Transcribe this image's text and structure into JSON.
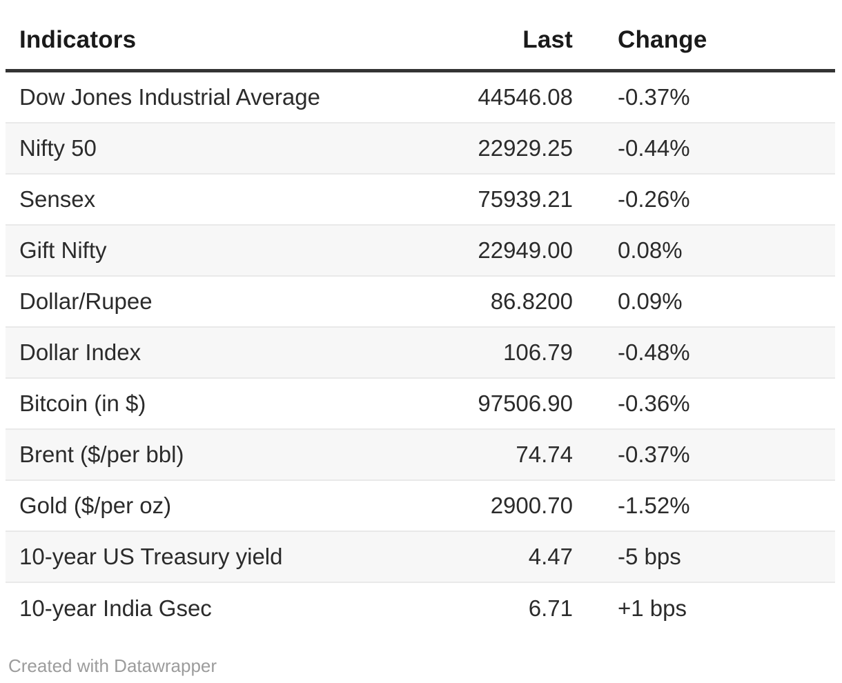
{
  "chart_data": {
    "type": "table",
    "title": "",
    "columns": [
      "Indicators",
      "Last",
      "Change"
    ],
    "rows": [
      {
        "indicator": "Dow Jones Industrial Average",
        "last": "44546.08",
        "change": "-0.37%"
      },
      {
        "indicator": "Nifty 50",
        "last": "22929.25",
        "change": "-0.44%"
      },
      {
        "indicator": "Sensex",
        "last": "75939.21",
        "change": "-0.26%"
      },
      {
        "indicator": "Gift Nifty",
        "last": "22949.00",
        "change": "0.08%"
      },
      {
        "indicator": "Dollar/Rupee",
        "last": "86.8200",
        "change": "0.09%"
      },
      {
        "indicator": "Dollar Index",
        "last": "106.79",
        "change": "-0.48%"
      },
      {
        "indicator": "Bitcoin (in $)",
        "last": "97506.90",
        "change": "-0.36%"
      },
      {
        "indicator": "Brent ($/per bbl)",
        "last": "74.74",
        "change": "-0.37%"
      },
      {
        "indicator": "Gold ($/per oz)",
        "last": "2900.70",
        "change": "-1.52%"
      },
      {
        "indicator": "10-year US Treasury yield",
        "last": "4.47",
        "change": "-5 bps"
      },
      {
        "indicator": "10-year India Gsec",
        "last": "6.71",
        "change": "+1 bps"
      }
    ],
    "layout": {
      "striped_rows": true,
      "header_rule": true,
      "last_column_align": "right",
      "change_column_align": "left"
    }
  },
  "footer": {
    "attribution_label": "Created with Datawrapper"
  },
  "colors": {
    "header_rule": "#333333",
    "row_stripe": "#f7f7f7",
    "row_divider": "#e9e9e9",
    "text": "#2b2b2b",
    "header_text": "#1a1a1a",
    "attribution_text": "#9c9c9c"
  }
}
